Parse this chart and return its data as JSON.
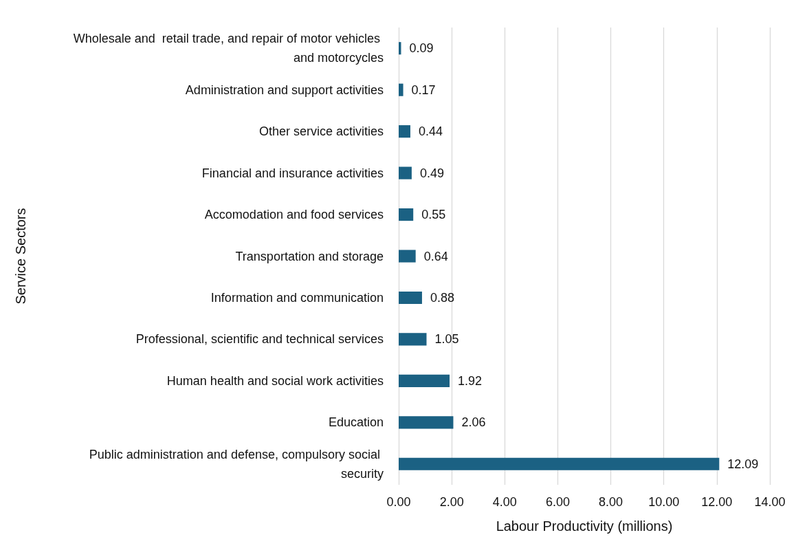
{
  "chart_data": {
    "type": "bar",
    "orientation": "horizontal",
    "xlabel": "Labour Productivity (millions)",
    "ylabel": "Service Sectors",
    "categories": [
      "Wholesale and  retail trade, and repair of motor vehicles and motorcycles",
      "Administration and support activities",
      "Other service activities",
      "Financial and insurance activities",
      "Accomodation and food services",
      "Transportation and storage",
      "Information and communication",
      "Professional, scientific and technical services",
      "Human health and social work activities",
      "Education",
      "Public administration and defense, compulsory social security"
    ],
    "values": [
      0.09,
      0.17,
      0.44,
      0.49,
      0.55,
      0.64,
      0.88,
      1.05,
      1.92,
      2.06,
      12.09
    ],
    "color": "#1b6183",
    "data_labels": true,
    "grid": "x",
    "xlim": [
      0,
      14
    ],
    "xticks": [
      {
        "value": 0,
        "label": "0.00"
      },
      {
        "value": 2,
        "label": "2.00"
      },
      {
        "value": 4,
        "label": "4.00"
      },
      {
        "value": 6,
        "label": "6.00"
      },
      {
        "value": 8,
        "label": "8.00"
      },
      {
        "value": 10,
        "label": "10.00"
      },
      {
        "value": 12,
        "label": "12.00"
      },
      {
        "value": 14,
        "label": "14.00"
      }
    ]
  }
}
